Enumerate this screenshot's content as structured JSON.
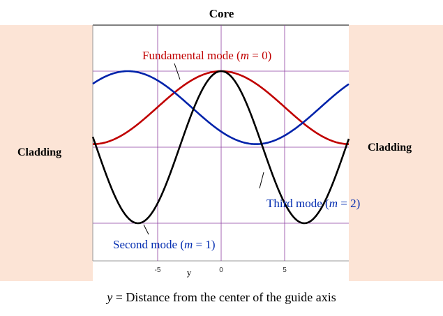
{
  "regions": {
    "core_label": "Core",
    "cladding_left_label": "Cladding",
    "cladding_right_label": "Cladding"
  },
  "axis": {
    "x_label": "y",
    "x_ticks": [
      "-5",
      "0",
      "5"
    ],
    "caption_var": "y",
    "caption_text": " = Distance from the center of the guide axis"
  },
  "modes": [
    {
      "id": "fundamental",
      "prefix": "Fundamental  mode (",
      "var": "m",
      "suffix": " = 0)",
      "color": "#c00000"
    },
    {
      "id": "second",
      "prefix": "Second mode (",
      "var": "m",
      "suffix": " = 1)",
      "color": "#002bb0"
    },
    {
      "id": "third",
      "prefix": "Third mode (",
      "var": "m",
      "suffix": " = 2)",
      "color": "#002bb0"
    }
  ],
  "curve_colors": {
    "fundamental": "#c00000",
    "second": "#0022aa",
    "third": "#000000",
    "grid": "#8e3fa0"
  }
}
